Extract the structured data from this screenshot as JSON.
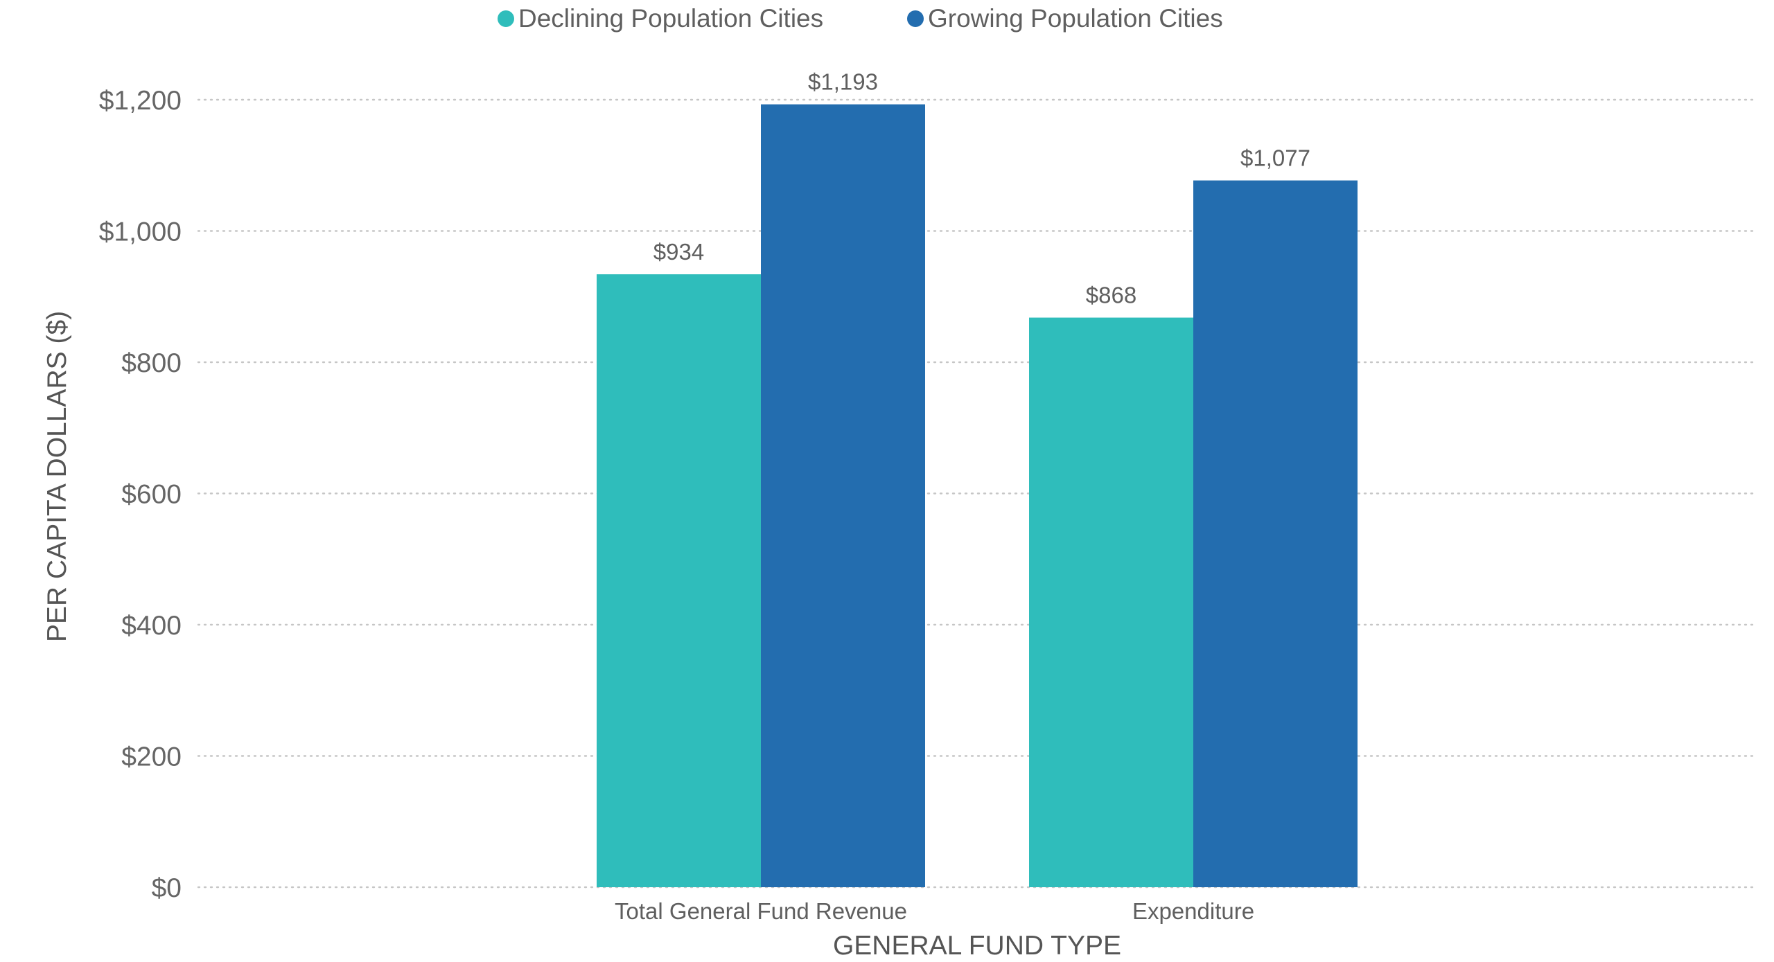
{
  "chart_data": {
    "type": "bar",
    "title": "",
    "xlabel": "GENERAL FUND TYPE",
    "ylabel": "PER CAPITA DOLLARS ($)",
    "ylim": [
      0,
      1200
    ],
    "yticks": [
      0,
      200,
      400,
      600,
      800,
      1000,
      1200
    ],
    "ytick_labels": [
      "$0",
      "$200",
      "$400",
      "$600",
      "$800",
      "$1,000",
      "$1,200"
    ],
    "grid": true,
    "legend_position": "top-center",
    "categories": [
      "Total General Fund Revenue",
      "Expenditure"
    ],
    "series": [
      {
        "name": "Declining Population Cities",
        "color": "#2fbdbb",
        "values": [
          934,
          868
        ],
        "labels": [
          "$934",
          "$868"
        ]
      },
      {
        "name": "Growing Population Cities",
        "color": "#236daf",
        "values": [
          1193,
          1077
        ],
        "labels": [
          "$1,193",
          "$1,077"
        ]
      }
    ]
  }
}
